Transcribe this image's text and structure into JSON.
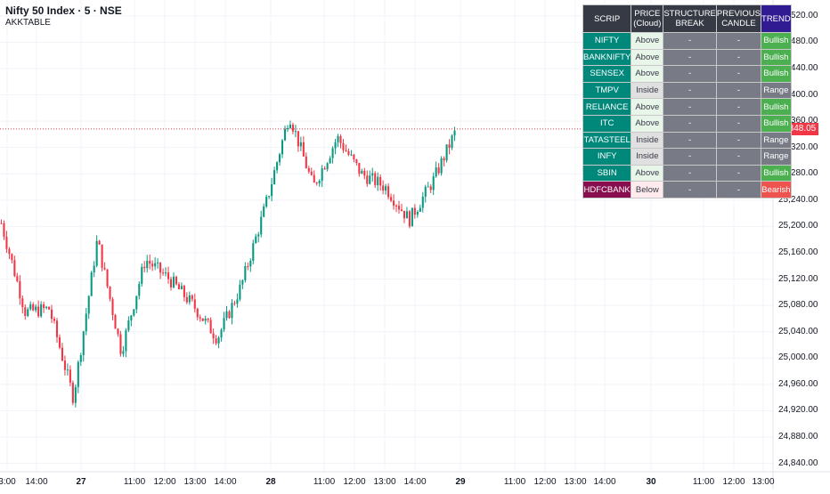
{
  "header": {
    "symbol_title": "Nifty 50 Index · 5 · NSE",
    "indicator": "AKKTABLE"
  },
  "price_axis": {
    "labels": [
      "25,520.00",
      "25,480.00",
      "25,440.00",
      "25,400.00",
      "25,360.00",
      "25,320.00",
      "25,280.00",
      "25,240.00",
      "25,200.00",
      "25,160.00",
      "25,120.00",
      "25,080.00",
      "25,040.00",
      "25,000.00",
      "24,960.00",
      "24,920.00",
      "24,880.00",
      "24,840.00"
    ],
    "last_price": "25,348.05",
    "last_price_color": "#f23645"
  },
  "time_axis": {
    "labels": [
      {
        "text": "3:00",
        "bold": false
      },
      {
        "text": "14:00",
        "bold": false
      },
      {
        "text": "27",
        "bold": true
      },
      {
        "text": "11:00",
        "bold": false
      },
      {
        "text": "12:00",
        "bold": false
      },
      {
        "text": "13:00",
        "bold": false
      },
      {
        "text": "14:00",
        "bold": false
      },
      {
        "text": "28",
        "bold": true
      },
      {
        "text": "11:00",
        "bold": false
      },
      {
        "text": "12:00",
        "bold": false
      },
      {
        "text": "13:00",
        "bold": false
      },
      {
        "text": "14:00",
        "bold": false
      },
      {
        "text": "29",
        "bold": true
      },
      {
        "text": "11:00",
        "bold": false
      },
      {
        "text": "12:00",
        "bold": false
      },
      {
        "text": "13:00",
        "bold": false
      },
      {
        "text": "14:00",
        "bold": false
      },
      {
        "text": "30",
        "bold": true
      },
      {
        "text": "11:00",
        "bold": false
      },
      {
        "text": "12:00",
        "bold": false
      },
      {
        "text": "13:00",
        "bold": false
      }
    ]
  },
  "colors": {
    "up": "#089981",
    "down": "#f23645",
    "teal_cell": "#00897b",
    "maroon_cell": "#880e4f",
    "bullish": "#4caf50",
    "bearish": "#ef5350",
    "range": "#787b86",
    "above_bg": "#e8f5e9",
    "inside_bg": "#e0e0e0",
    "below_bg": "#ffebee"
  },
  "table": {
    "headers": {
      "scrip": "SCRIP",
      "price_1": "PRICE",
      "price_2": "(Cloud)",
      "sb_1": "STRUCTURE",
      "sb_2": "BREAK",
      "pc_1": "PREVIOUS",
      "pc_2": "CANDLE",
      "trend": "TREND"
    },
    "rows": [
      {
        "scrip": "NIFTY",
        "price": "Above",
        "structure_break": "-",
        "previous_candle": "-",
        "trend": "Bullish"
      },
      {
        "scrip": "BANKNIFTY",
        "price": "Above",
        "structure_break": "-",
        "previous_candle": "-",
        "trend": "Bullish"
      },
      {
        "scrip": "SENSEX",
        "price": "Above",
        "structure_break": "-",
        "previous_candle": "-",
        "trend": "Bullish"
      },
      {
        "scrip": "TMPV",
        "price": "Inside",
        "structure_break": "-",
        "previous_candle": "-",
        "trend": "Range"
      },
      {
        "scrip": "RELIANCE",
        "price": "Above",
        "structure_break": "-",
        "previous_candle": "-",
        "trend": "Bullish"
      },
      {
        "scrip": "ITC",
        "price": "Above",
        "structure_break": "-",
        "previous_candle": "-",
        "trend": "Bullish"
      },
      {
        "scrip": "TATASTEEL",
        "price": "Inside",
        "structure_break": "-",
        "previous_candle": "-",
        "trend": "Range"
      },
      {
        "scrip": "INFY",
        "price": "Inside",
        "structure_break": "-",
        "previous_candle": "-",
        "trend": "Range"
      },
      {
        "scrip": "SBIN",
        "price": "Above",
        "structure_break": "-",
        "previous_candle": "-",
        "trend": "Bullish"
      },
      {
        "scrip": "HDFCBANK",
        "price": "Below",
        "structure_break": "-",
        "previous_candle": "-",
        "trend": "Bearish"
      }
    ]
  },
  "chart_data": {
    "type": "candlestick",
    "symbol": "Nifty 50 Index",
    "interval": "5",
    "ylim": [
      24830,
      25540
    ],
    "last_price": 25348.05,
    "waypoints": [
      {
        "day": "26",
        "time": "15:00",
        "close": 25205
      },
      {
        "day": "26",
        "time": "15:25",
        "close": 25070
      },
      {
        "day": "27",
        "time": "09:20",
        "close": 25075
      },
      {
        "day": "27",
        "time": "09:45",
        "close": 24940
      },
      {
        "day": "27",
        "time": "10:15",
        "close": 25180
      },
      {
        "day": "27",
        "time": "11:00",
        "close": 25010
      },
      {
        "day": "27",
        "time": "11:30",
        "close": 25150
      },
      {
        "day": "27",
        "time": "12:15",
        "close": 25120
      },
      {
        "day": "27",
        "time": "13:00",
        "close": 25080
      },
      {
        "day": "27",
        "time": "14:00",
        "close": 25030
      },
      {
        "day": "27",
        "time": "14:30",
        "close": 25110
      },
      {
        "day": "27",
        "time": "15:25",
        "close": 25230
      },
      {
        "day": "28",
        "time": "09:20",
        "close": 25370
      },
      {
        "day": "28",
        "time": "10:30",
        "close": 25260
      },
      {
        "day": "28",
        "time": "11:30",
        "close": 25335
      },
      {
        "day": "28",
        "time": "12:15",
        "close": 25280
      },
      {
        "day": "28",
        "time": "13:00",
        "close": 25260
      },
      {
        "day": "28",
        "time": "14:00",
        "close": 25210
      },
      {
        "day": "28",
        "time": "14:45",
        "close": 25270
      },
      {
        "day": "28",
        "time": "15:25",
        "close": 25350
      }
    ]
  }
}
